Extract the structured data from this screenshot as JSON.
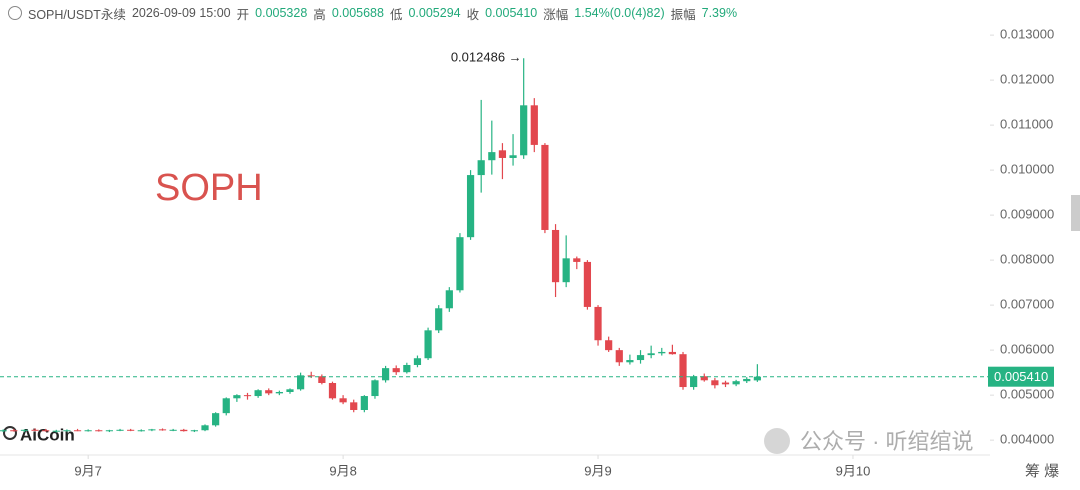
{
  "header": {
    "symbol": "SOPH/USDT永续",
    "time": "2026-09-09 15:00",
    "fields": [
      {
        "label": "开",
        "value": "0.005328"
      },
      {
        "label": "高",
        "value": "0.005688"
      },
      {
        "label": "低",
        "value": "0.005294"
      },
      {
        "label": "收",
        "value": "0.005410"
      },
      {
        "label": "涨幅",
        "value": "1.54%(0.0(4)82)"
      },
      {
        "label": "振幅",
        "value": "7.39%"
      }
    ]
  },
  "watermarks": {
    "symbol": "SOPH",
    "brand": "AiCoin",
    "account": "公众号 · 听绾绾说",
    "corner": "筹 爆"
  },
  "chart_data": {
    "type": "candlestick",
    "up_color": "#26b383",
    "down_color": "#e2474e",
    "x": [
      0,
      1,
      2,
      3,
      4,
      5,
      6,
      7,
      8,
      9,
      10,
      11,
      12,
      13,
      14,
      15,
      16,
      17,
      18,
      19,
      20,
      21,
      22,
      23,
      24,
      25,
      26,
      27,
      28,
      29,
      30,
      31,
      32,
      33,
      34,
      35,
      36,
      37,
      38,
      39,
      40,
      41,
      42,
      43,
      44,
      45,
      46,
      47,
      48,
      49,
      50,
      51,
      52,
      53,
      54,
      55,
      56,
      57,
      58,
      59,
      60,
      61,
      62,
      63,
      64,
      65,
      66,
      67,
      68,
      69,
      70,
      71
    ],
    "open": [
      0.0042,
      0.00422,
      0.00421,
      0.00423,
      0.00422,
      0.0042,
      0.00421,
      0.00422,
      0.00421,
      0.00422,
      0.0042,
      0.00422,
      0.00423,
      0.00421,
      0.00422,
      0.00424,
      0.00422,
      0.00423,
      0.0042,
      0.00422,
      0.00433,
      0.0046,
      0.00493,
      0.005,
      0.00498,
      0.00511,
      0.00504,
      0.00507,
      0.00513,
      0.00544,
      0.00542,
      0.00527,
      0.00493,
      0.00484,
      0.00467,
      0.00498,
      0.00533,
      0.0056,
      0.00551,
      0.00567,
      0.00582,
      0.00644,
      0.00693,
      0.00733,
      0.00851,
      0.00989,
      0.01022,
      0.01044,
      0.01027,
      0.01033,
      0.01144,
      0.01056,
      0.00867,
      0.00751,
      0.00804,
      0.00796,
      0.00696,
      0.00622,
      0.006,
      0.00573,
      0.00578,
      0.00589,
      0.00593,
      0.00596,
      0.00591,
      0.00518,
      0.00542,
      0.00533,
      0.00528,
      0.00524,
      0.00531,
      0.005328
    ],
    "high": [
      0.00424,
      0.00425,
      0.00424,
      0.00426,
      0.00425,
      0.00423,
      0.00424,
      0.00425,
      0.00424,
      0.00424,
      0.00423,
      0.00425,
      0.00425,
      0.00424,
      0.00425,
      0.00426,
      0.00425,
      0.00425,
      0.00423,
      0.00435,
      0.00462,
      0.00495,
      0.00502,
      0.00505,
      0.00513,
      0.00515,
      0.0051,
      0.00515,
      0.0055,
      0.00552,
      0.00546,
      0.0053,
      0.005,
      0.0049,
      0.005,
      0.00535,
      0.00565,
      0.00566,
      0.00572,
      0.00588,
      0.0065,
      0.007,
      0.0074,
      0.0086,
      0.01,
      0.01156,
      0.0111,
      0.0106,
      0.0108,
      0.012486,
      0.0116,
      0.0106,
      0.0088,
      0.00855,
      0.00808,
      0.008,
      0.007,
      0.0063,
      0.00605,
      0.0059,
      0.006,
      0.0061,
      0.00605,
      0.00612,
      0.00596,
      0.00545,
      0.00548,
      0.00538,
      0.00532,
      0.00534,
      0.0054,
      0.005688
    ],
    "low": [
      0.00418,
      0.00419,
      0.00418,
      0.0042,
      0.00419,
      0.00417,
      0.00419,
      0.0042,
      0.00419,
      0.00419,
      0.00418,
      0.0042,
      0.0042,
      0.00419,
      0.0042,
      0.00421,
      0.0042,
      0.00419,
      0.00418,
      0.0042,
      0.0043,
      0.00455,
      0.00485,
      0.0049,
      0.00494,
      0.005,
      0.005,
      0.00503,
      0.0051,
      0.00538,
      0.00524,
      0.0049,
      0.0048,
      0.00462,
      0.00462,
      0.00492,
      0.00528,
      0.00545,
      0.00548,
      0.00562,
      0.00578,
      0.00638,
      0.00685,
      0.00728,
      0.00845,
      0.0095,
      0.0099,
      0.0098,
      0.0101,
      0.01025,
      0.0104,
      0.0086,
      0.00718,
      0.0074,
      0.0078,
      0.0069,
      0.0061,
      0.00596,
      0.00565,
      0.00568,
      0.0057,
      0.00582,
      0.00588,
      0.0059,
      0.00512,
      0.00512,
      0.0053,
      0.00515,
      0.00518,
      0.0052,
      0.00527,
      0.005294
    ],
    "close": [
      0.00422,
      0.00421,
      0.00423,
      0.00422,
      0.0042,
      0.00421,
      0.00422,
      0.00421,
      0.00422,
      0.0042,
      0.00422,
      0.00423,
      0.00421,
      0.00422,
      0.00424,
      0.00422,
      0.00423,
      0.0042,
      0.00422,
      0.00433,
      0.0046,
      0.00493,
      0.005,
      0.00498,
      0.00511,
      0.00504,
      0.00507,
      0.00513,
      0.00544,
      0.00542,
      0.00527,
      0.00493,
      0.00484,
      0.00467,
      0.00498,
      0.00533,
      0.0056,
      0.00551,
      0.00567,
      0.00582,
      0.00644,
      0.00693,
      0.00733,
      0.00851,
      0.00989,
      0.01022,
      0.0104,
      0.01027,
      0.01033,
      0.01144,
      0.01056,
      0.00867,
      0.00751,
      0.00804,
      0.00796,
      0.00696,
      0.00622,
      0.006,
      0.00573,
      0.00578,
      0.00589,
      0.00593,
      0.00596,
      0.00591,
      0.00518,
      0.00542,
      0.00533,
      0.00522,
      0.00524,
      0.00531,
      0.00536,
      0.00541
    ],
    "xlim": [
      -0.3,
      92.9
    ],
    "xticks": [
      {
        "value": 8,
        "label": "9月7"
      },
      {
        "value": 32,
        "label": "9月8"
      },
      {
        "value": 56,
        "label": "9月9"
      },
      {
        "value": 80,
        "label": "9月10"
      }
    ],
    "ylim": [
      0.00367,
      0.01378
    ],
    "yticks": [
      {
        "value": 0.004,
        "label": "0.004000"
      },
      {
        "value": 0.005,
        "label": "0.005000"
      },
      {
        "value": 0.006,
        "label": "0.006000"
      },
      {
        "value": 0.007,
        "label": "0.007000"
      },
      {
        "value": 0.008,
        "label": "0.008000"
      },
      {
        "value": 0.009,
        "label": "0.009000"
      },
      {
        "value": 0.01,
        "label": "0.010000"
      },
      {
        "value": 0.011,
        "label": "0.011000"
      },
      {
        "value": 0.012,
        "label": "0.012000"
      },
      {
        "value": 0.013,
        "label": "0.013000"
      }
    ],
    "last_price": {
      "value": 0.00541,
      "label": "0.005410"
    },
    "max_annotation": {
      "value": 0.012486,
      "label": "0.012486 →"
    }
  }
}
